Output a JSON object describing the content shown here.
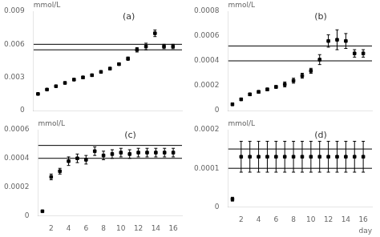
{
  "chart_data": [
    {
      "type": "scatter",
      "title": "(a)",
      "ylabel": "mmol/L",
      "x": [
        1,
        2,
        3,
        4,
        5,
        6,
        7,
        8,
        9,
        10,
        11,
        12,
        13,
        14,
        15,
        16
      ],
      "values": [
        0.0015,
        0.0019,
        0.0022,
        0.0025,
        0.0028,
        0.003,
        0.0032,
        0.0035,
        0.0038,
        0.0042,
        0.0047,
        0.0055,
        0.0058,
        0.007,
        0.0058,
        0.0058
      ],
      "yerr": [
        5e-05,
        5e-05,
        5e-05,
        8e-05,
        8e-05,
        0.0001,
        0.0001,
        0.0001,
        0.0001,
        0.0001,
        0.00015,
        0.0002,
        0.0003,
        0.0003,
        0.0002,
        0.0002
      ],
      "hlines": [
        0.006,
        0.0055
      ],
      "xlim": [
        0.5,
        17
      ],
      "xticks": [
        2,
        4,
        6,
        8,
        10,
        12,
        14,
        16
      ],
      "ylim": [
        0,
        0.009
      ],
      "yticks": [
        0,
        0.003,
        0.006,
        0.009
      ],
      "color": "black",
      "marker": "square",
      "grid": false,
      "tick_labels": "y"
    },
    {
      "type": "scatter",
      "title": "(b)",
      "ylabel": "mmol/L",
      "x": [
        1,
        2,
        3,
        4,
        5,
        6,
        7,
        8,
        9,
        10,
        11,
        12,
        13,
        14,
        15,
        16
      ],
      "values": [
        5e-05,
        9e-05,
        0.00013,
        0.00015,
        0.00017,
        0.00019,
        0.00021,
        0.00024,
        0.00028,
        0.00032,
        0.00041,
        0.00056,
        0.00057,
        0.00056,
        0.00046,
        0.00046
      ],
      "yerr": [
        1e-05,
        1e-05,
        1e-05,
        1e-05,
        1e-05,
        1e-05,
        2e-05,
        2e-05,
        2e-05,
        2e-05,
        4e-05,
        5e-05,
        8e-05,
        6e-05,
        3e-05,
        3e-05
      ],
      "hlines": [
        0.00052,
        0.0004
      ],
      "xlim": [
        0.5,
        17
      ],
      "xticks": [
        2,
        4,
        6,
        8,
        10,
        12,
        14,
        16
      ],
      "ylim": [
        0,
        0.0008
      ],
      "yticks": [
        0,
        0.0002,
        0.0004,
        0.0006,
        0.0008
      ],
      "color": "black",
      "marker": "square",
      "grid": false,
      "tick_labels": "y"
    },
    {
      "type": "scatter",
      "title": "(c)",
      "ylabel": "mmol/L",
      "x": [
        1,
        2,
        3,
        4,
        5,
        6,
        7,
        8,
        9,
        10,
        11,
        12,
        13,
        14,
        15,
        16
      ],
      "values": [
        3e-05,
        0.00027,
        0.00031,
        0.00038,
        0.0004,
        0.00039,
        0.00045,
        0.00042,
        0.00043,
        0.00044,
        0.00043,
        0.00044,
        0.00044,
        0.00044,
        0.00044,
        0.00044
      ],
      "yerr": [
        5e-06,
        2e-05,
        2e-05,
        3e-05,
        3e-05,
        3e-05,
        3e-05,
        3e-05,
        3e-05,
        3e-05,
        3e-05,
        3e-05,
        3e-05,
        3e-05,
        3e-05,
        3e-05
      ],
      "hlines": [
        0.00049,
        0.0004
      ],
      "xlim": [
        0.5,
        17
      ],
      "xticks": [
        2,
        4,
        6,
        8,
        10,
        12,
        14,
        16
      ],
      "ylim": [
        0,
        0.0006
      ],
      "yticks": [
        0,
        0.0002,
        0.0004,
        0.0006
      ],
      "color": "black",
      "marker": "square",
      "grid": false
    },
    {
      "type": "scatter",
      "title": "(d)",
      "ylabel": "mmol/L",
      "xlabel": "day",
      "x": [
        1,
        2,
        3,
        4,
        5,
        6,
        7,
        8,
        9,
        10,
        11,
        12,
        13,
        14,
        15,
        16
      ],
      "values": [
        2e-05,
        0.00013,
        0.00013,
        0.00013,
        0.00013,
        0.00013,
        0.00013,
        0.00013,
        0.00013,
        0.00013,
        0.00013,
        0.00013,
        0.00013,
        0.00013,
        0.00013,
        0.00013
      ],
      "yerr": [
        5e-06,
        4e-05,
        4e-05,
        4e-05,
        4e-05,
        4e-05,
        4e-05,
        4e-05,
        4e-05,
        4e-05,
        4e-05,
        4e-05,
        4e-05,
        4e-05,
        4e-05,
        4e-05
      ],
      "hlines": [
        0.00015,
        0.0001
      ],
      "xlim": [
        0.5,
        17
      ],
      "xticks": [
        2,
        4,
        6,
        8,
        10,
        12,
        14,
        16
      ],
      "ylim": [
        0,
        0.0002
      ],
      "yticks": [
        0,
        0.0001,
        0.0002
      ],
      "color": "black",
      "marker": "square",
      "grid": false
    }
  ]
}
